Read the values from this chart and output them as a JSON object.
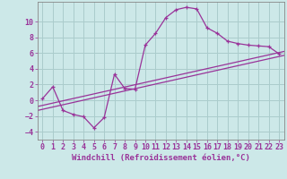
{
  "background_color": "#cce8e8",
  "grid_color": "#aacccc",
  "line_color": "#993399",
  "marker": "+",
  "xlabel": "Windchill (Refroidissement éolien,°C)",
  "xlim": [
    -0.5,
    23.5
  ],
  "ylim": [
    -5,
    12.5
  ],
  "yticks": [
    -4,
    -2,
    0,
    2,
    4,
    6,
    8,
    10
  ],
  "xticks": [
    0,
    1,
    2,
    3,
    4,
    5,
    6,
    7,
    8,
    9,
    10,
    11,
    12,
    13,
    14,
    15,
    16,
    17,
    18,
    19,
    20,
    21,
    22,
    23
  ],
  "curve_x": [
    0,
    1,
    2,
    3,
    4,
    5,
    6,
    7,
    8,
    9,
    10,
    11,
    12,
    13,
    14,
    15,
    16,
    17,
    18,
    19,
    20,
    21,
    22,
    23
  ],
  "curve_y": [
    0.2,
    1.7,
    -1.3,
    -1.8,
    -2.1,
    -3.5,
    -2.2,
    3.3,
    1.5,
    1.4,
    7.0,
    8.5,
    10.5,
    11.5,
    11.8,
    11.6,
    9.2,
    8.5,
    7.5,
    7.2,
    7.0,
    6.9,
    6.8,
    5.9
  ],
  "line1_x": [
    -0.5,
    23.5
  ],
  "line1_y": [
    -0.8,
    6.2
  ],
  "line2_x": [
    -0.5,
    23.5
  ],
  "line2_y": [
    -1.3,
    5.7
  ],
  "font_family": "monospace",
  "xlabel_fontsize": 6.5,
  "tick_fontsize": 6,
  "tick_color": "#993399",
  "label_color": "#993399"
}
